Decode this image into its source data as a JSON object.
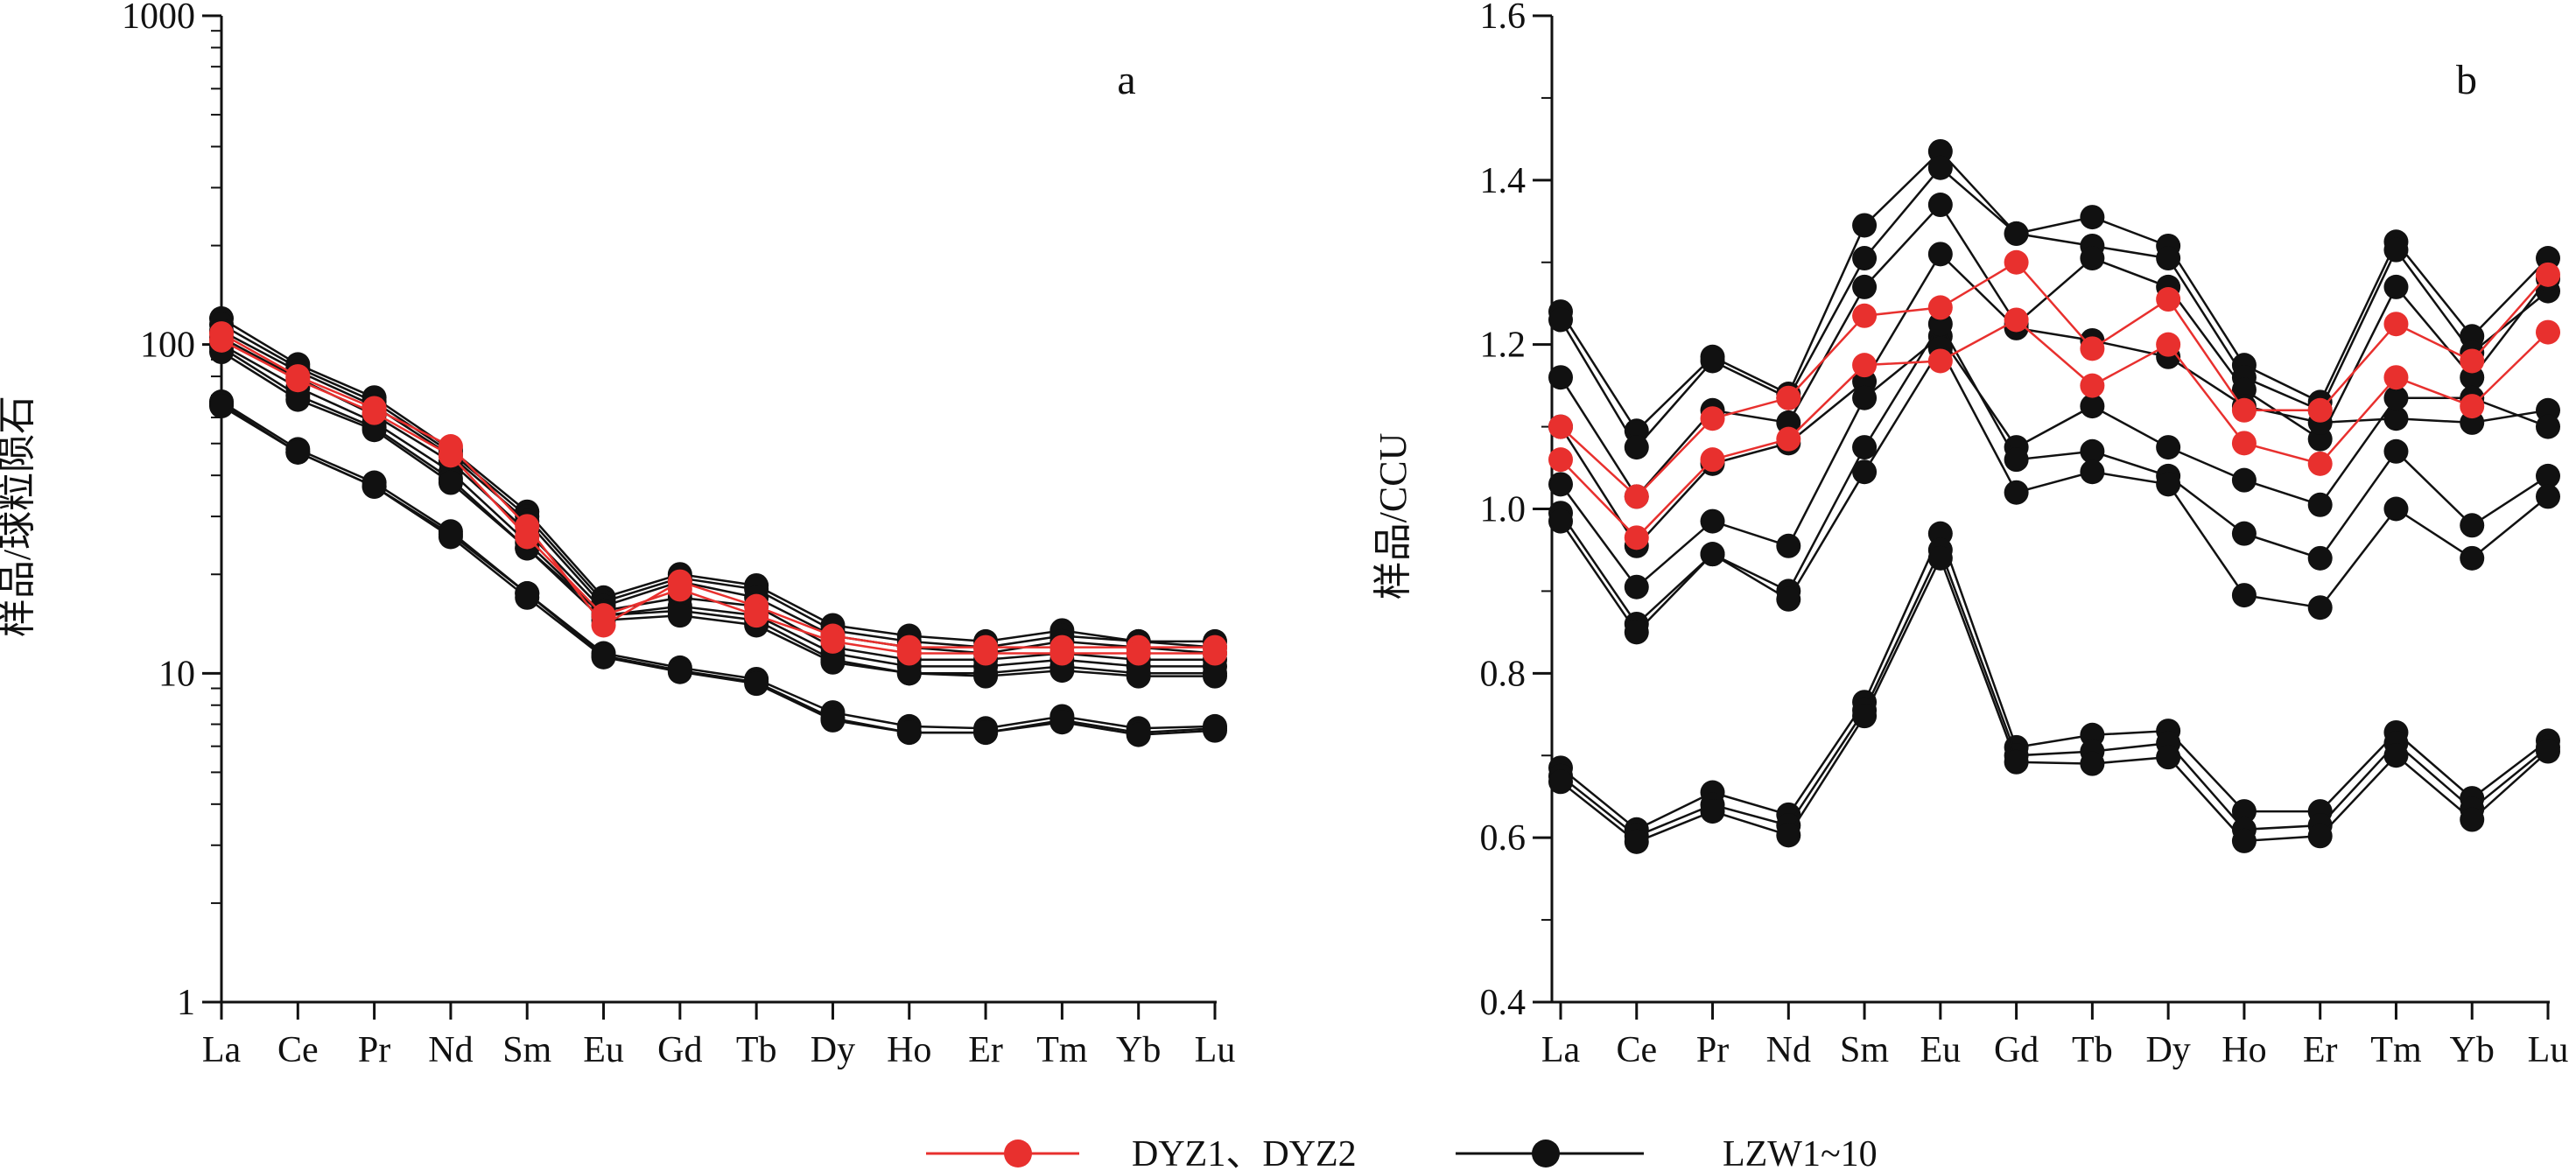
{
  "chart_data": [
    {
      "type": "line",
      "panel_label": "a",
      "ylabel": "样品/球粒陨石",
      "yscale": "log",
      "ylim": [
        1,
        1000
      ],
      "yticks": [
        "1",
        "10",
        "100",
        "1000"
      ],
      "categories": [
        "La",
        "Ce",
        "Pr",
        "Nd",
        "Sm",
        "Eu",
        "Gd",
        "Tb",
        "Dy",
        "Ho",
        "Er",
        "Tm",
        "Yb",
        "Lu"
      ],
      "series": [
        {
          "group": "DYZ1、DYZ2",
          "color": "#e8302e",
          "values": [
            108,
            80,
            64,
            49,
            28,
            14,
            19,
            16,
            13,
            12,
            12,
            12,
            12,
            12
          ]
        },
        {
          "group": "DYZ1、DYZ2",
          "color": "#e8302e",
          "values": [
            103,
            78,
            62,
            46,
            26,
            15,
            18,
            15,
            12.5,
            11.5,
            11.5,
            11.5,
            11.5,
            11.5
          ]
        },
        {
          "group": "LZW1~10",
          "color": "#111111",
          "values": [
            120,
            87,
            69,
            48,
            31,
            17,
            20,
            18.5,
            14,
            13,
            12.5,
            13.5,
            12.5,
            12.5
          ]
        },
        {
          "group": "LZW1~10",
          "color": "#111111",
          "values": [
            115,
            85,
            67,
            47,
            30,
            16.5,
            19.5,
            18,
            13.5,
            12.5,
            12,
            13,
            12.5,
            12
          ]
        },
        {
          "group": "LZW1~10",
          "color": "#111111",
          "values": [
            110,
            83,
            65,
            46,
            29,
            16,
            19,
            17,
            13,
            12,
            11.5,
            12.5,
            12,
            11.5
          ]
        },
        {
          "group": "LZW1~10",
          "color": "#111111",
          "values": [
            105,
            79,
            61,
            44,
            27,
            15.5,
            17,
            16,
            12,
            11,
            11,
            11.5,
            11,
            11
          ]
        },
        {
          "group": "LZW1~10",
          "color": "#111111",
          "values": [
            100,
            74,
            58,
            41,
            25,
            15,
            16,
            15,
            11.5,
            10.5,
            10.5,
            11,
            10.5,
            10.5
          ]
        },
        {
          "group": "LZW1~10",
          "color": "#111111",
          "values": [
            98,
            70,
            56,
            39,
            24,
            15,
            15.5,
            14.5,
            11,
            10,
            10,
            10.5,
            10,
            10
          ]
        },
        {
          "group": "LZW1~10",
          "color": "#111111",
          "values": [
            95,
            68,
            55,
            38,
            24,
            14.5,
            15,
            14,
            10.8,
            10,
            9.8,
            10.2,
            9.8,
            9.8
          ]
        },
        {
          "group": "LZW1~10",
          "color": "#111111",
          "values": [
            67,
            48,
            38,
            27,
            17.5,
            11.5,
            10.4,
            9.6,
            7.6,
            6.9,
            6.8,
            7.4,
            6.8,
            6.9
          ]
        },
        {
          "group": "LZW1~10",
          "color": "#111111",
          "values": [
            66,
            47,
            37,
            26.5,
            17.5,
            11.3,
            10.2,
            9.4,
            7.3,
            6.6,
            6.6,
            7.2,
            6.6,
            6.8
          ]
        },
        {
          "group": "LZW1~10",
          "color": "#111111",
          "values": [
            65,
            47,
            37,
            26,
            17,
            11.2,
            10.1,
            9.3,
            7.2,
            6.6,
            6.6,
            7.1,
            6.5,
            6.7
          ]
        }
      ]
    },
    {
      "type": "line",
      "panel_label": "b",
      "ylabel": "样品/CCU",
      "yscale": "linear",
      "ylim": [
        0.4,
        1.6
      ],
      "yticks": [
        "0.4",
        "0.6",
        "0.8",
        "1.0",
        "1.2",
        "1.4",
        "1.6"
      ],
      "categories": [
        "La",
        "Ce",
        "Pr",
        "Nd",
        "Sm",
        "Eu",
        "Gd",
        "Tb",
        "Dy",
        "Ho",
        "Er",
        "Tm",
        "Yb",
        "Lu"
      ],
      "series": [
        {
          "group": "DYZ1、DYZ2",
          "color": "#e8302e",
          "values": [
            1.1,
            1.015,
            1.11,
            1.135,
            1.235,
            1.245,
            1.3,
            1.195,
            1.255,
            1.12,
            1.12,
            1.225,
            1.18,
            1.285
          ]
        },
        {
          "group": "DYZ1、DYZ2",
          "color": "#e8302e",
          "values": [
            1.06,
            0.965,
            1.06,
            1.085,
            1.175,
            1.18,
            1.23,
            1.15,
            1.2,
            1.08,
            1.055,
            1.16,
            1.125,
            1.215
          ]
        },
        {
          "group": "LZW1~10",
          "color": "#111111",
          "values": [
            1.24,
            1.095,
            1.185,
            1.14,
            1.345,
            1.435,
            1.335,
            1.355,
            1.32,
            1.175,
            1.13,
            1.325,
            1.21,
            1.305
          ]
        },
        {
          "group": "LZW1~10",
          "color": "#111111",
          "values": [
            1.23,
            1.075,
            1.18,
            1.135,
            1.305,
            1.415,
            1.335,
            1.32,
            1.305,
            1.16,
            1.12,
            1.315,
            1.19,
            1.265
          ]
        },
        {
          "group": "LZW1~10",
          "color": "#111111",
          "values": [
            1.16,
            1.015,
            1.12,
            1.105,
            1.27,
            1.37,
            1.225,
            1.305,
            1.27,
            1.145,
            1.085,
            1.27,
            1.16,
            1.28
          ]
        },
        {
          "group": "LZW1~10",
          "color": "#111111",
          "values": [
            1.1,
            0.955,
            1.055,
            1.08,
            1.155,
            1.31,
            1.22,
            1.205,
            1.185,
            1.125,
            1.105,
            1.11,
            1.105,
            1.12
          ]
        },
        {
          "group": "LZW1~10",
          "color": "#111111",
          "values": [
            1.03,
            0.905,
            0.985,
            0.955,
            1.135,
            1.21,
            1.075,
            1.125,
            1.075,
            1.035,
            1.005,
            1.135,
            1.135,
            1.1
          ]
        },
        {
          "group": "LZW1~10",
          "color": "#111111",
          "values": [
            0.995,
            0.86,
            0.945,
            0.9,
            1.075,
            1.225,
            1.06,
            1.07,
            1.04,
            0.97,
            0.94,
            1.07,
            0.98,
            1.04
          ]
        },
        {
          "group": "LZW1~10",
          "color": "#111111",
          "values": [
            0.985,
            0.85,
            0.945,
            0.89,
            1.045,
            1.195,
            1.02,
            1.045,
            1.03,
            0.895,
            0.88,
            1.0,
            0.94,
            1.015
          ]
        },
        {
          "group": "LZW1~10",
          "color": "#111111",
          "values": [
            0.685,
            0.61,
            0.655,
            0.628,
            0.765,
            0.97,
            0.71,
            0.725,
            0.73,
            0.632,
            0.632,
            0.728,
            0.648,
            0.718
          ]
        },
        {
          "group": "LZW1~10",
          "color": "#111111",
          "values": [
            0.675,
            0.602,
            0.64,
            0.615,
            0.755,
            0.95,
            0.7,
            0.705,
            0.715,
            0.61,
            0.615,
            0.715,
            0.635,
            0.71
          ]
        },
        {
          "group": "LZW1~10",
          "color": "#111111",
          "values": [
            0.668,
            0.595,
            0.632,
            0.603,
            0.748,
            0.94,
            0.692,
            0.69,
            0.698,
            0.596,
            0.602,
            0.7,
            0.622,
            0.705
          ]
        }
      ]
    }
  ],
  "legend": [
    {
      "label": "DYZ1、DYZ2",
      "color": "#e8302e"
    },
    {
      "label": "LZW1~10",
      "color": "#111111"
    }
  ]
}
